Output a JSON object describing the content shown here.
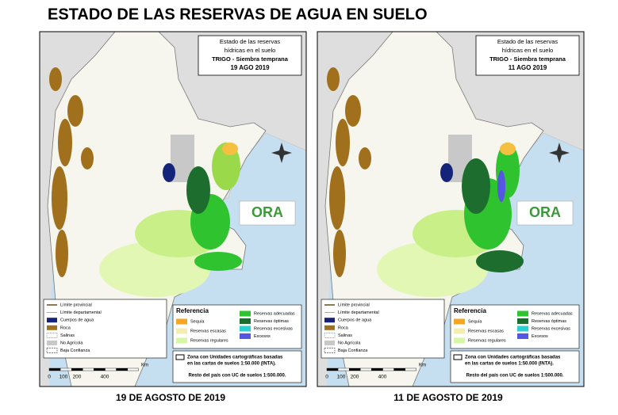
{
  "title": "ESTADO DE LAS RESERVAS DE AGUA EN SUELO",
  "panels": [
    {
      "info": [
        "Estado de las reservas",
        "hídricas en el suelo",
        "TRIGO - Siembra temprana",
        "19 AGO 2019"
      ],
      "caption": "19 DE AGOSTO DE 2019"
    },
    {
      "info": [
        "Estado de las reservas",
        "hídricas en el suelo",
        "TRIGO - Siembra temprana",
        "11 AGO 2019"
      ],
      "caption": "11 DE AGOSTO DE 2019"
    }
  ],
  "legend": {
    "items": [
      "Límite provincial",
      "Límite departamental",
      "Cuerpos de agua",
      "Roca",
      "Salinas",
      "No Agrícola",
      "Baja Confianza"
    ]
  },
  "reference": {
    "title": "Referencia",
    "items": [
      "Sequía",
      "Reservas escasas",
      "Reservas regulares",
      "Reservas adecuadas",
      "Reservas óptimas",
      "Reservas excesivas",
      "Excesos"
    ]
  },
  "notes": {
    "zone": [
      "Zona con Unidades cartográficas basadas",
      "en las cartas de suelos 1:50.000 (INTA)."
    ],
    "rest": "Resto del país con UC de suelos 1:500.000."
  },
  "scale": {
    "unit": "Km",
    "labels": [
      "0",
      "100",
      "200",
      "400"
    ]
  },
  "logo": "ORA"
}
